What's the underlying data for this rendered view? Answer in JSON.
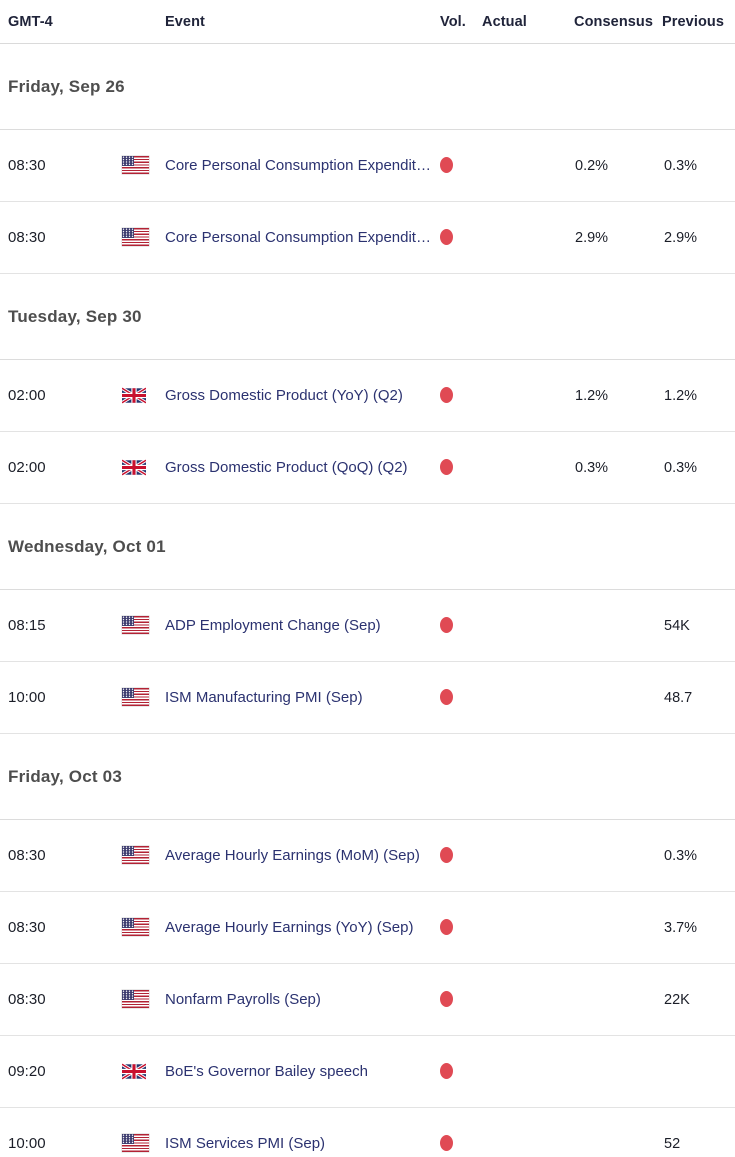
{
  "table": {
    "timezone_label": "GMT-4",
    "columns": [
      {
        "key": "time",
        "label": "GMT-4"
      },
      {
        "key": "event",
        "label": "Event"
      },
      {
        "key": "vol",
        "label": "Vol."
      },
      {
        "key": "actual",
        "label": "Actual"
      },
      {
        "key": "consensus",
        "label": "Consensus"
      },
      {
        "key": "previous",
        "label": "Previous"
      }
    ],
    "sections": [
      {
        "day": "Friday, Sep 26",
        "rows": [
          {
            "time": "08:30",
            "country": "US",
            "event": "Core Personal Consumption Expendit…",
            "volatility": "high",
            "actual": "",
            "consensus": "0.2%",
            "previous": "0.3%"
          },
          {
            "time": "08:30",
            "country": "US",
            "event": "Core Personal Consumption Expendit…",
            "volatility": "high",
            "actual": "",
            "consensus": "2.9%",
            "previous": "2.9%"
          }
        ]
      },
      {
        "day": "Tuesday, Sep 30",
        "rows": [
          {
            "time": "02:00",
            "country": "UK",
            "event": "Gross Domestic Product (YoY) (Q2)",
            "volatility": "high",
            "actual": "",
            "consensus": "1.2%",
            "previous": "1.2%"
          },
          {
            "time": "02:00",
            "country": "UK",
            "event": "Gross Domestic Product (QoQ) (Q2)",
            "volatility": "high",
            "actual": "",
            "consensus": "0.3%",
            "previous": "0.3%"
          }
        ]
      },
      {
        "day": "Wednesday, Oct 01",
        "rows": [
          {
            "time": "08:15",
            "country": "US",
            "event": "ADP Employment Change (Sep)",
            "volatility": "high",
            "actual": "",
            "consensus": "",
            "previous": "54K"
          },
          {
            "time": "10:00",
            "country": "US",
            "event": "ISM Manufacturing PMI (Sep)",
            "volatility": "high",
            "actual": "",
            "consensus": "",
            "previous": "48.7"
          }
        ]
      },
      {
        "day": "Friday, Oct 03",
        "rows": [
          {
            "time": "08:30",
            "country": "US",
            "event": "Average Hourly Earnings (MoM) (Sep)",
            "volatility": "high",
            "actual": "",
            "consensus": "",
            "previous": "0.3%"
          },
          {
            "time": "08:30",
            "country": "US",
            "event": "Average Hourly Earnings (YoY) (Sep)",
            "volatility": "high",
            "actual": "",
            "consensus": "",
            "previous": "3.7%"
          },
          {
            "time": "08:30",
            "country": "US",
            "event": "Nonfarm Payrolls (Sep)",
            "volatility": "high",
            "actual": "",
            "consensus": "",
            "previous": "22K"
          },
          {
            "time": "09:20",
            "country": "UK",
            "event": "BoE's Governor Bailey speech",
            "volatility": "high",
            "actual": "",
            "consensus": "",
            "previous": ""
          },
          {
            "time": "10:00",
            "country": "US",
            "event": "ISM Services PMI (Sep)",
            "volatility": "high",
            "actual": "",
            "consensus": "",
            "previous": "52"
          }
        ]
      }
    ]
  },
  "colors": {
    "event_link": "#2b3270",
    "volatility_high_dot": "#e04a54",
    "day_header_text": "#4e4e4e",
    "column_header_text": "#20243a",
    "body_text": "#1b1e28",
    "divider": "#e3e3e3"
  },
  "icons": {
    "US": "us-flag-icon",
    "UK": "uk-flag-icon",
    "volatility": "high-volatility-dot-icon"
  }
}
